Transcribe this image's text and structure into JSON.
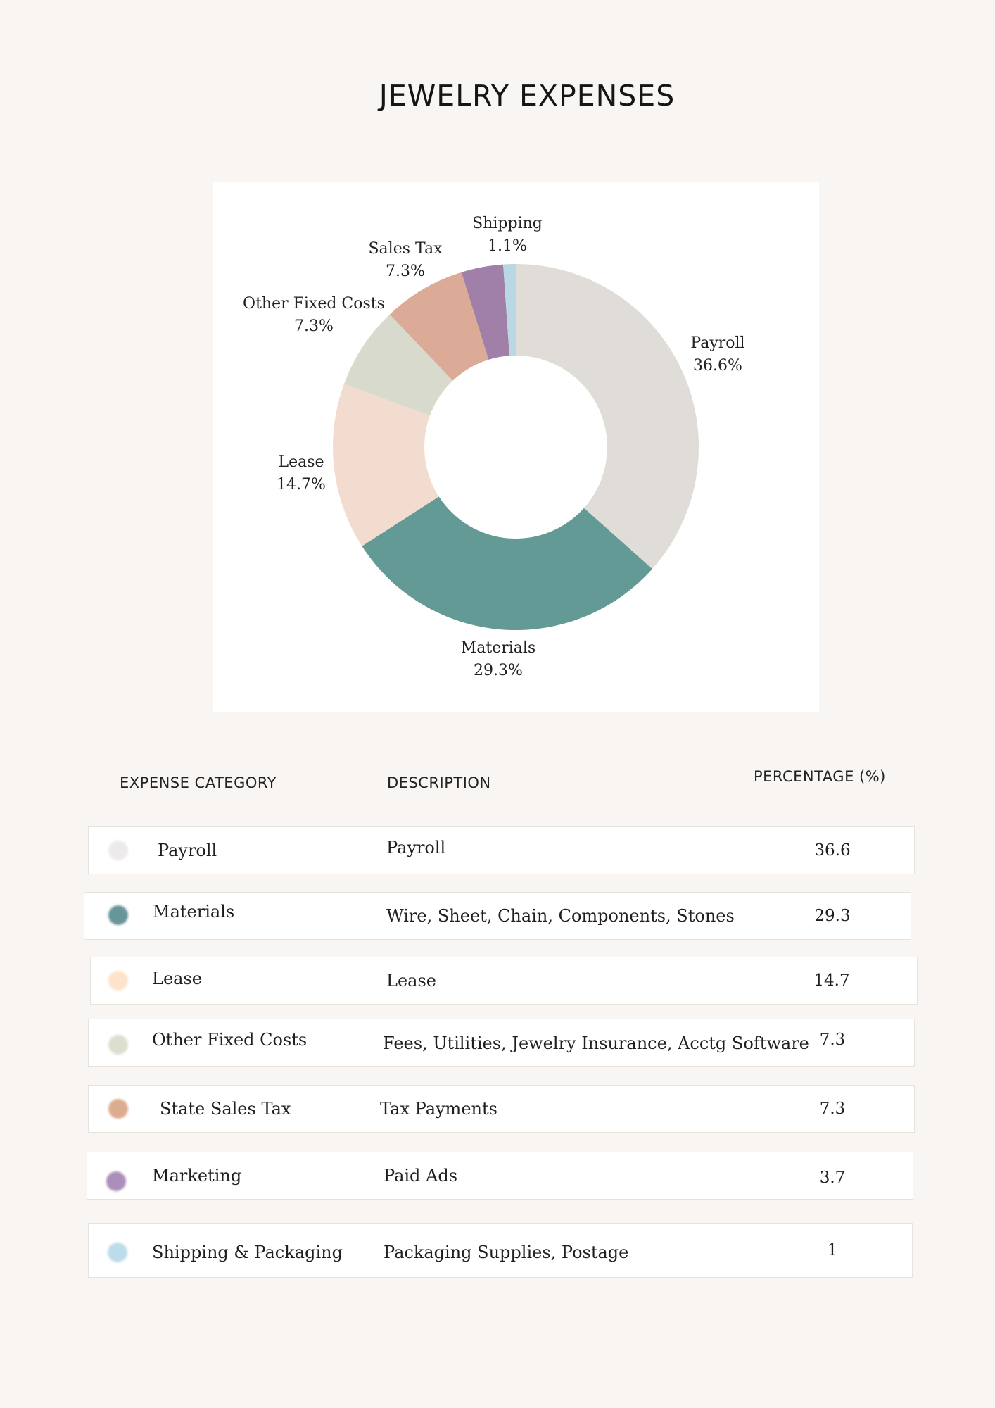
{
  "title": "JEWELRY EXPENSES",
  "chart_data": {
    "type": "pie",
    "donut": true,
    "title": "",
    "slices": [
      {
        "label": "Payroll",
        "value_label": "36.6%",
        "value": 36.6,
        "color": "#e0ddd9"
      },
      {
        "label": "Materials",
        "value_label": "29.3%",
        "value": 29.3,
        "color": "#649a96"
      },
      {
        "label": "Lease",
        "value_label": "14.7%",
        "value": 14.7,
        "color": "#f2dcd0"
      },
      {
        "label": "Other Fixed Costs",
        "value_label": "7.3%",
        "value": 7.3,
        "color": "#d8dacd"
      },
      {
        "label": "Sales Tax",
        "value_label": "7.3%",
        "value": 7.3,
        "color": "#dbab98"
      },
      {
        "label": "",
        "value_label": "",
        "value": 3.7,
        "color": "#a07fa8"
      },
      {
        "label": "Shipping",
        "value_label": "1.1%",
        "value": 1.1,
        "color": "#b9d8e3"
      }
    ]
  },
  "table": {
    "headers": {
      "category": "EXPENSE CATEGORY",
      "description": "DESCRIPTION",
      "percentage": "PERCENTAGE (%)"
    },
    "rows": [
      {
        "category": "Payroll",
        "description": "Payroll",
        "percentage": "36.6",
        "color": "#eceaea"
      },
      {
        "category": "Materials",
        "description": "Wire, Sheet, Chain, Components, Stones",
        "percentage": "29.3",
        "color": "#66959a"
      },
      {
        "category": "Lease",
        "description": "Lease",
        "percentage": "14.7",
        "color": "#fde3c9"
      },
      {
        "category": "Other Fixed Costs",
        "description": "Fees, Utilities, Jewelry Insurance, Acctg Software",
        "percentage": "7.3",
        "color": "#dcdfd0"
      },
      {
        "category": "State Sales Tax",
        "description": "Tax Payments",
        "percentage": "7.3",
        "color": "#dcac90"
      },
      {
        "category": "Marketing",
        "description": "Paid Ads",
        "percentage": "3.7",
        "color": "#ab8eb9"
      },
      {
        "category": "Shipping & Packaging",
        "description": "Packaging Supplies, Postage",
        "percentage": "1",
        "color": "#bcdcea"
      }
    ]
  }
}
